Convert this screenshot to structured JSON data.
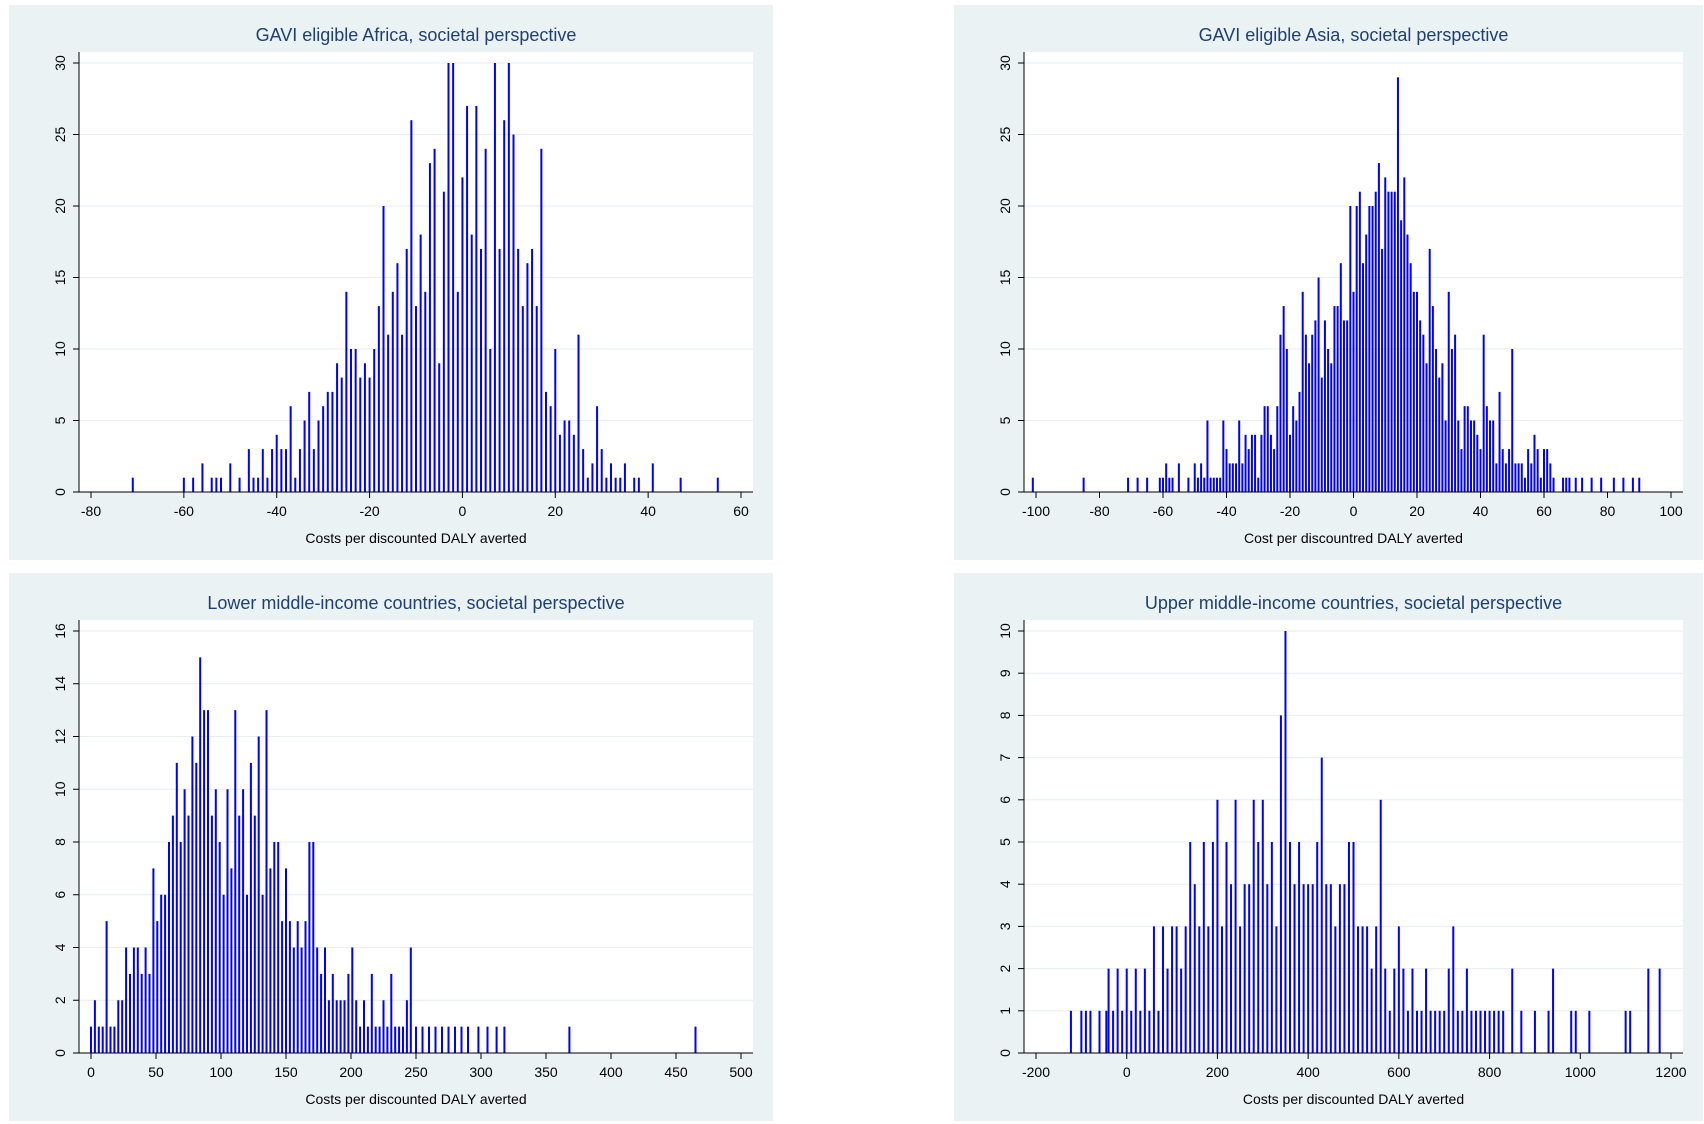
{
  "chart_data": [
    {
      "type": "bar",
      "title": "GAVI eligible Africa, societal perspective",
      "xlabel": "Costs per discounted DALY averted",
      "color": "#0000ff",
      "grid": true,
      "xlim": [
        -80,
        60
      ],
      "ylim": [
        0,
        30
      ],
      "xticks": [
        -80,
        -60,
        -40,
        -20,
        0,
        20,
        40,
        60
      ],
      "yticks": [
        0,
        5,
        10,
        15,
        20,
        25,
        30
      ],
      "x": [
        -71,
        -60,
        -58,
        -56,
        -54,
        -53,
        -52,
        -50,
        -48,
        -46,
        -45,
        -44,
        -43,
        -42,
        -41,
        -40,
        -39,
        -38,
        -37,
        -36,
        -35,
        -34,
        -33,
        -32,
        -31,
        -30,
        -29,
        -28,
        -27,
        -26,
        -25,
        -24,
        -23,
        -22,
        -21,
        -20,
        -19,
        -18,
        -17,
        -16,
        -15,
        -14,
        -13,
        -12,
        -11,
        -10,
        -9,
        -8,
        -7,
        -6,
        -5,
        -4,
        -3,
        -2,
        -1,
        0,
        1,
        2,
        3,
        4,
        5,
        6,
        7,
        8,
        9,
        10,
        11,
        12,
        13,
        14,
        15,
        16,
        17,
        18,
        19,
        20,
        21,
        22,
        23,
        24,
        25,
        26,
        27,
        28,
        29,
        30,
        31,
        32,
        33,
        34,
        35,
        37,
        38,
        41,
        47,
        55
      ],
      "values": [
        1,
        1,
        1,
        2,
        1,
        1,
        1,
        2,
        1,
        3,
        1,
        1,
        3,
        1,
        3,
        4,
        3,
        3,
        6,
        1,
        3,
        5,
        7,
        3,
        5,
        6,
        7,
        7,
        9,
        8,
        14,
        10,
        10,
        8,
        9,
        8,
        10,
        13,
        20,
        11,
        14,
        16,
        11,
        17,
        26,
        13,
        18,
        14,
        23,
        24,
        9,
        21,
        30,
        30,
        14,
        22,
        27,
        18,
        27,
        17,
        24,
        10,
        30,
        17,
        26,
        30,
        25,
        17,
        13,
        16,
        17,
        13,
        24,
        7,
        6,
        10,
        4,
        5,
        5,
        4,
        11,
        3,
        1,
        2,
        6,
        3,
        1,
        2,
        1,
        1,
        2,
        1,
        1,
        2,
        1,
        1
      ]
    },
    {
      "type": "bar",
      "title": "GAVI eligible Asia, societal perspective",
      "xlabel": "Cost per discountred DALY averted",
      "color": "#0000ff",
      "grid": true,
      "xlim": [
        -100,
        100
      ],
      "ylim": [
        0,
        30
      ],
      "xticks": [
        -100,
        -80,
        -60,
        -40,
        -20,
        0,
        20,
        40,
        60,
        80,
        100
      ],
      "yticks": [
        0,
        5,
        10,
        15,
        20,
        25,
        30
      ],
      "x": [
        -101,
        -85,
        -71,
        -68,
        -65,
        -61,
        -60,
        -59,
        -58,
        -57,
        -56,
        -55,
        -54,
        -53,
        -52,
        -51,
        -50,
        -49,
        -48,
        -47,
        -46,
        -45,
        -44,
        -43,
        -42,
        -41,
        -40,
        -39,
        -38,
        -37,
        -36,
        -35,
        -34,
        -33,
        -32,
        -31,
        -30,
        -29,
        -28,
        -27,
        -26,
        -25,
        -24,
        -23,
        -22,
        -21,
        -20,
        -19,
        -18,
        -17,
        -16,
        -15,
        -14,
        -13,
        -12,
        -11,
        -10,
        -9,
        -8,
        -7,
        -6,
        -5,
        -4,
        -3,
        -2,
        -1,
        0,
        1,
        2,
        3,
        4,
        5,
        6,
        7,
        8,
        9,
        10,
        11,
        12,
        13,
        14,
        15,
        16,
        17,
        18,
        19,
        20,
        21,
        22,
        23,
        24,
        25,
        26,
        27,
        28,
        29,
        30,
        31,
        32,
        33,
        34,
        35,
        36,
        37,
        38,
        39,
        40,
        41,
        42,
        43,
        44,
        45,
        46,
        47,
        48,
        49,
        50,
        51,
        52,
        53,
        54,
        55,
        56,
        57,
        58,
        59,
        60,
        61,
        62,
        63,
        66,
        67,
        68,
        70,
        72,
        75,
        78,
        82,
        85,
        88,
        90
      ],
      "values": [
        1,
        1,
        1,
        1,
        1,
        1,
        1,
        2,
        1,
        1,
        0,
        2,
        0,
        0,
        1,
        0,
        2,
        1,
        2,
        1,
        5,
        1,
        1,
        1,
        1,
        5,
        3,
        2,
        2,
        2,
        5,
        2,
        4,
        3,
        4,
        4,
        1,
        4,
        6,
        6,
        4,
        3,
        6,
        11,
        13,
        10,
        4,
        6,
        5,
        7,
        14,
        11,
        9,
        11,
        12,
        15,
        8,
        12,
        10,
        9,
        13,
        13,
        16,
        12,
        12,
        20,
        14,
        20,
        21,
        16,
        18,
        20,
        20,
        21,
        23,
        17,
        22,
        21,
        21,
        21,
        29,
        19,
        22,
        18,
        16,
        14,
        14,
        12,
        11,
        9,
        17,
        13,
        10,
        8,
        9,
        5,
        14,
        10,
        11,
        5,
        3,
        6,
        6,
        5,
        5,
        4,
        3,
        11,
        6,
        5,
        5,
        2,
        7,
        3,
        2,
        3,
        10,
        2,
        2,
        2,
        1,
        3,
        2,
        4,
        3,
        1,
        3,
        3,
        2,
        1,
        1,
        1,
        1,
        1,
        1,
        1,
        1,
        1,
        1,
        1,
        1
      ]
    },
    {
      "type": "bar",
      "title": "Lower middle-income countries, societal perspective",
      "xlabel": "Costs per discounted DALY averted",
      "color": "#0000ff",
      "grid": true,
      "xlim": [
        0,
        500
      ],
      "ylim": [
        0,
        16
      ],
      "xticks": [
        0,
        50,
        100,
        150,
        200,
        250,
        300,
        350,
        400,
        450,
        500
      ],
      "yticks": [
        0,
        2,
        4,
        6,
        8,
        10,
        12,
        14,
        16
      ],
      "x": [
        0,
        3,
        6,
        9,
        12,
        15,
        18,
        21,
        24,
        27,
        30,
        33,
        36,
        39,
        42,
        45,
        48,
        51,
        54,
        57,
        60,
        63,
        66,
        69,
        72,
        75,
        78,
        81,
        84,
        87,
        90,
        93,
        96,
        99,
        102,
        105,
        108,
        111,
        114,
        117,
        120,
        123,
        126,
        129,
        132,
        135,
        138,
        141,
        144,
        147,
        150,
        153,
        156,
        159,
        162,
        165,
        168,
        171,
        174,
        177,
        180,
        183,
        186,
        189,
        192,
        195,
        198,
        201,
        204,
        207,
        210,
        213,
        216,
        219,
        222,
        225,
        228,
        231,
        234,
        237,
        240,
        243,
        246,
        250,
        255,
        260,
        265,
        270,
        275,
        280,
        285,
        290,
        298,
        305,
        312,
        318,
        368,
        465
      ],
      "values": [
        1,
        2,
        1,
        1,
        5,
        1,
        1,
        2,
        2,
        4,
        3,
        4,
        4,
        3,
        4,
        3,
        7,
        5,
        6,
        6,
        8,
        9,
        11,
        8,
        10,
        9,
        12,
        11,
        15,
        13,
        13,
        9,
        10,
        8,
        6,
        10,
        7,
        13,
        9,
        10,
        6,
        11,
        9,
        12,
        6,
        13,
        7,
        8,
        8,
        5,
        7,
        5,
        4,
        5,
        4,
        5,
        8,
        8,
        4,
        3,
        4,
        2,
        3,
        2,
        2,
        2,
        3,
        4,
        2,
        1,
        2,
        1,
        3,
        1,
        1,
        2,
        1,
        3,
        1,
        1,
        1,
        2,
        4,
        1,
        1,
        1,
        1,
        1,
        1,
        1,
        1,
        1,
        1,
        1,
        1,
        1,
        1,
        1
      ]
    },
    {
      "type": "bar",
      "title": "Upper middle-income countries, societal perspective",
      "xlabel": "Costs per discounted DALY averted",
      "color": "#0000ff",
      "grid": true,
      "xlim": [
        -200,
        1200
      ],
      "ylim": [
        0,
        10
      ],
      "xticks": [
        -200,
        0,
        200,
        400,
        600,
        800,
        1000,
        1200
      ],
      "yticks": [
        0,
        1,
        2,
        3,
        4,
        5,
        6,
        7,
        8,
        9,
        10
      ],
      "x": [
        -123,
        -100,
        -90,
        -80,
        -60,
        -45,
        -40,
        -30,
        -20,
        -10,
        0,
        10,
        20,
        30,
        40,
        50,
        60,
        70,
        80,
        90,
        100,
        110,
        120,
        130,
        140,
        150,
        160,
        170,
        180,
        190,
        200,
        210,
        220,
        230,
        240,
        250,
        260,
        270,
        280,
        290,
        300,
        310,
        320,
        330,
        340,
        350,
        360,
        370,
        380,
        390,
        400,
        410,
        420,
        430,
        440,
        450,
        460,
        470,
        480,
        490,
        500,
        510,
        520,
        530,
        540,
        550,
        560,
        570,
        580,
        590,
        600,
        610,
        620,
        630,
        640,
        650,
        660,
        670,
        680,
        690,
        700,
        710,
        720,
        730,
        740,
        750,
        760,
        770,
        780,
        790,
        800,
        810,
        820,
        830,
        850,
        870,
        900,
        930,
        940,
        980,
        990,
        1020,
        1100,
        1110,
        1150,
        1175
      ],
      "values": [
        1,
        1,
        1,
        1,
        1,
        1,
        2,
        1,
        2,
        1,
        2,
        1,
        2,
        1,
        2,
        1,
        3,
        1,
        3,
        2,
        3,
        3,
        2,
        3,
        5,
        4,
        3,
        5,
        3,
        5,
        6,
        3,
        5,
        4,
        6,
        3,
        4,
        4,
        6,
        5,
        6,
        4,
        5,
        3,
        8,
        10,
        5,
        4,
        5,
        4,
        4,
        4,
        5,
        7,
        4,
        4,
        3,
        4,
        4,
        5,
        5,
        3,
        3,
        3,
        2,
        3,
        6,
        2,
        1,
        2,
        3,
        2,
        1,
        2,
        1,
        1,
        2,
        1,
        1,
        1,
        1,
        2,
        3,
        1,
        1,
        2,
        1,
        1,
        1,
        1,
        1,
        1,
        1,
        1,
        2,
        1,
        1,
        1,
        2,
        1,
        1,
        1,
        1,
        1,
        2,
        2
      ]
    }
  ]
}
